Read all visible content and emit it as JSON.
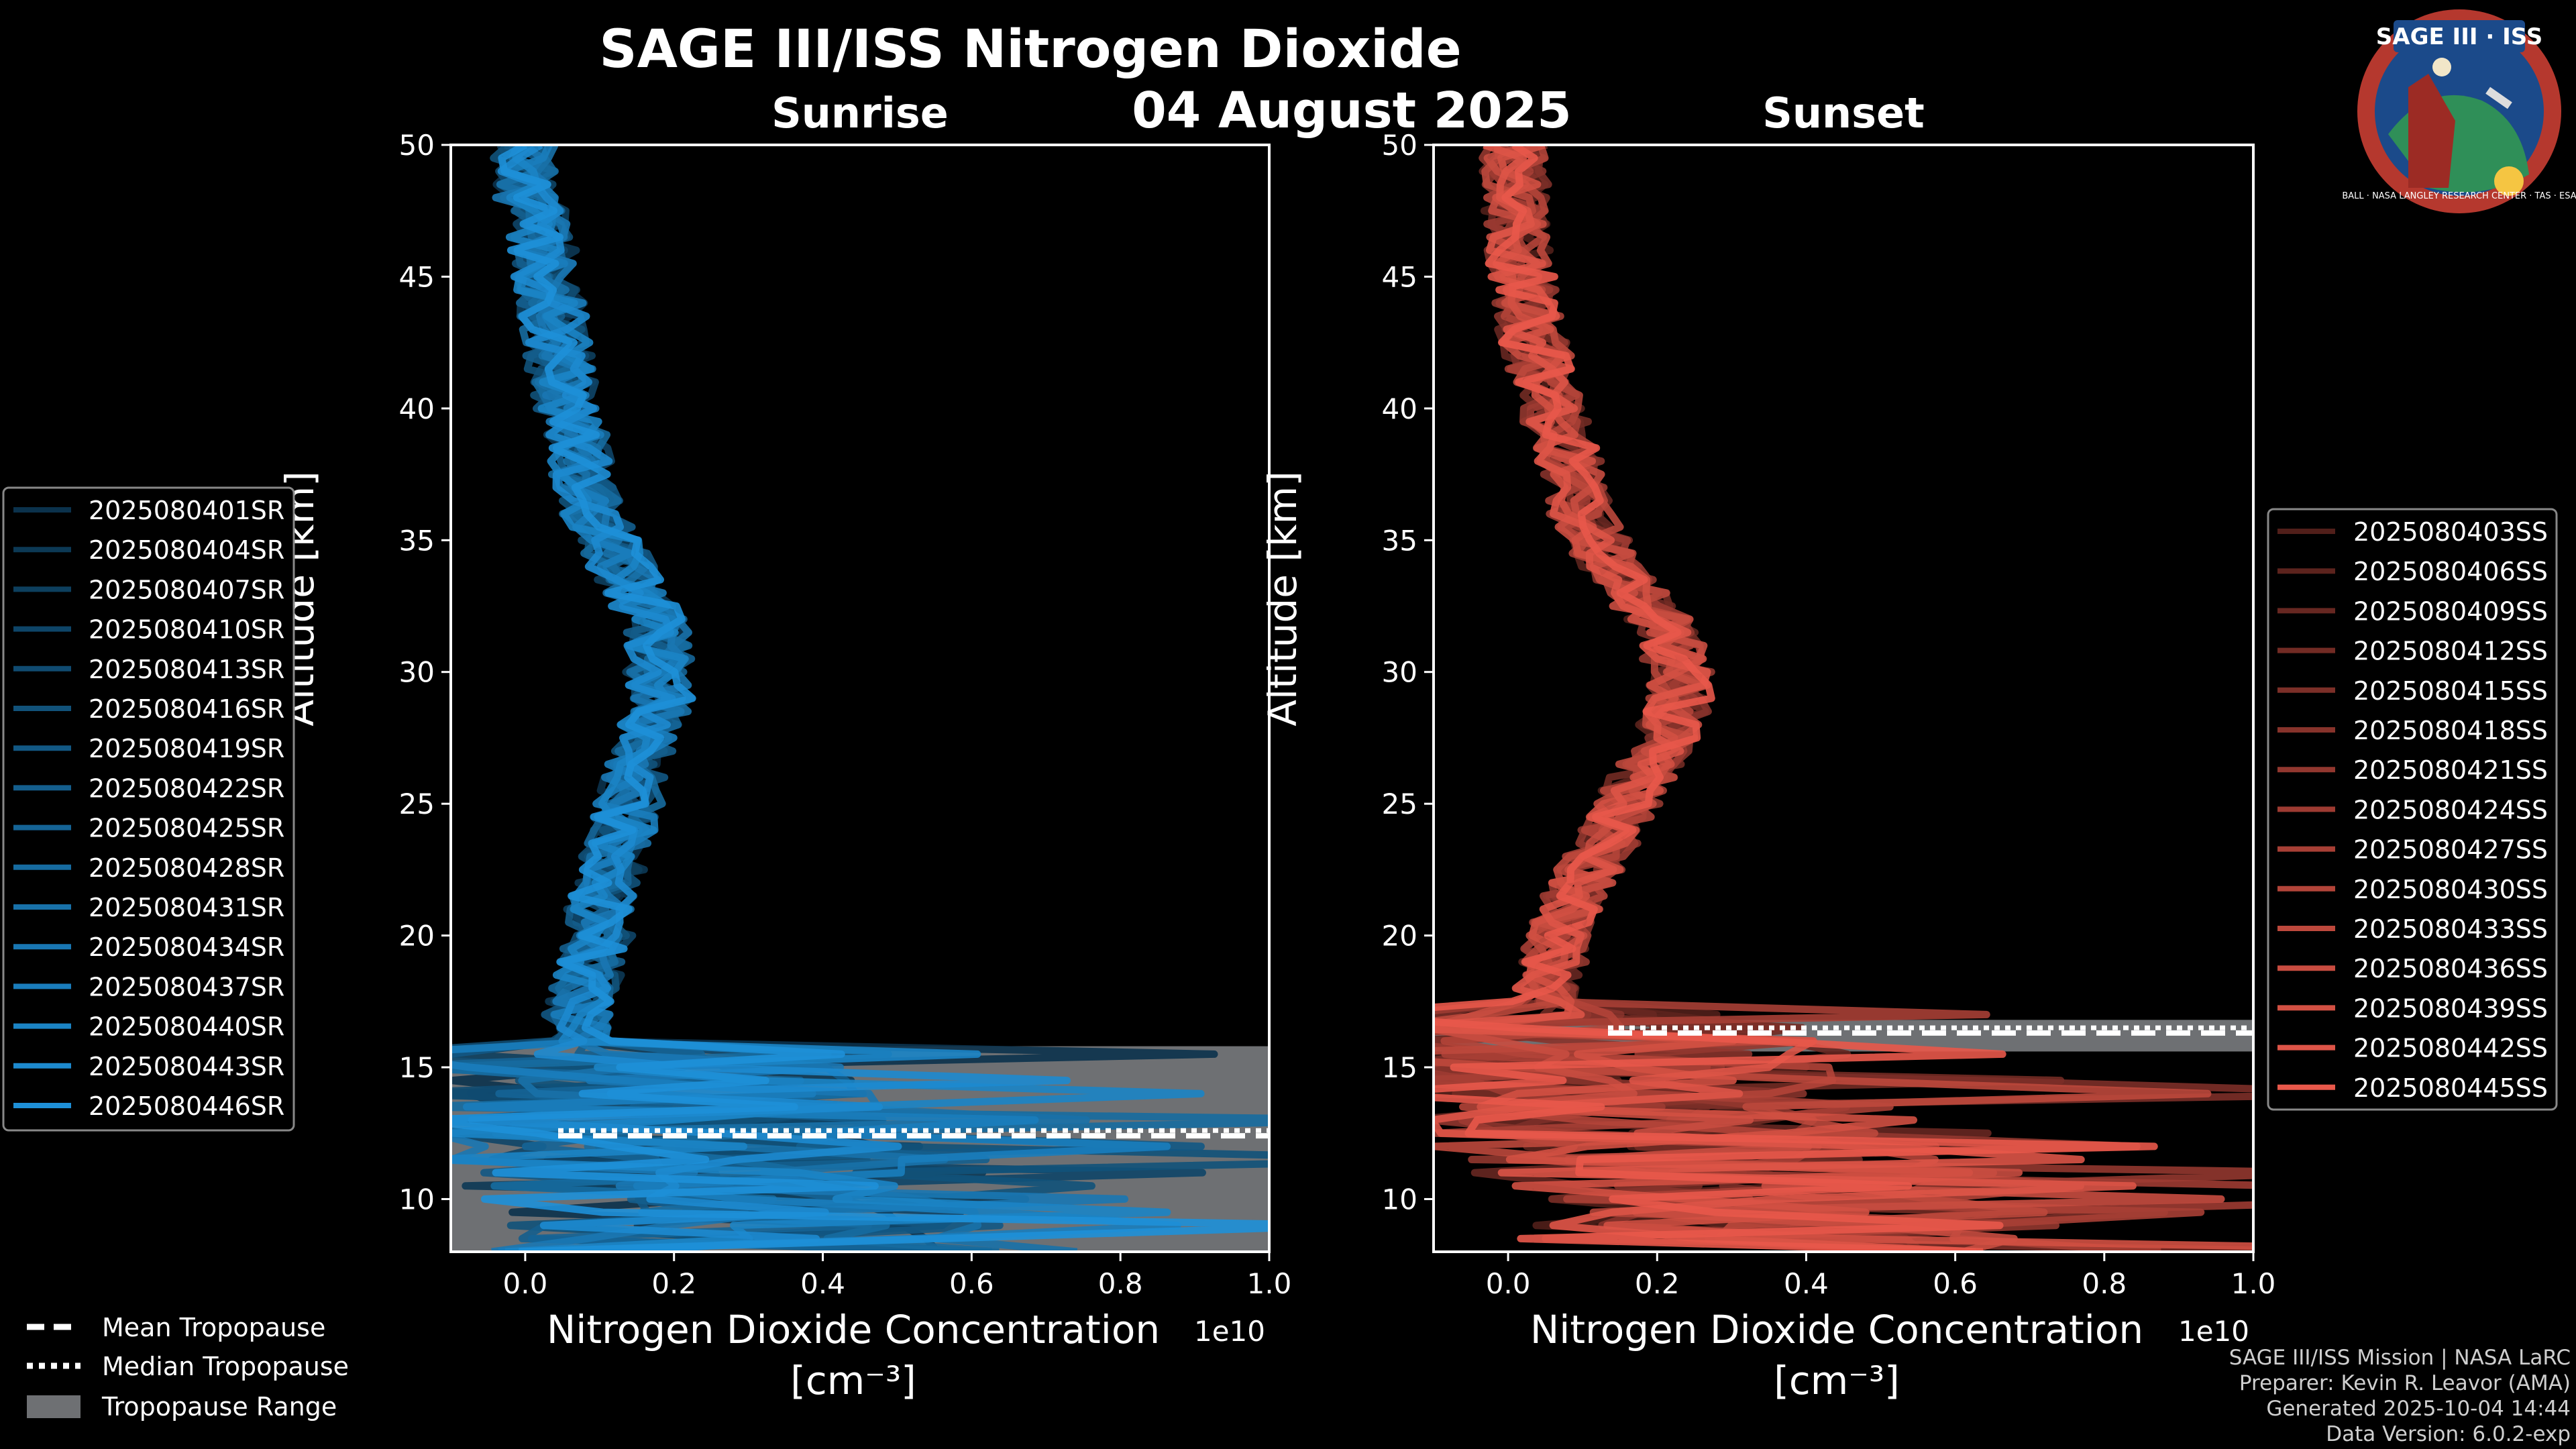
{
  "header": {
    "title": "SAGE III/ISS Nitrogen Dioxide",
    "date": "04 August 2025"
  },
  "logo": {
    "text": "SAGE III · ISS",
    "ring_text": "BALL · NASA LANGLEY RESEARCH CENTER · TAS · ESA"
  },
  "colors": {
    "sunrise": "#1e90d8",
    "sunset": "#e8584a",
    "tropopause_fill": "#6e7073",
    "background": "#000000"
  },
  "chart_data": [
    {
      "type": "line",
      "panel": "sunrise",
      "title": "Sunrise",
      "xlabel": "Nitrogen Dioxide Concentration",
      "xunits": "[cm⁻³]",
      "ylabel": "Altitude [km]",
      "x_multiplier": "1e10",
      "xlim": [
        -0.1,
        1.0
      ],
      "ylim": [
        8,
        50
      ],
      "xticks": [
        "0.0",
        "0.2",
        "0.4",
        "0.6",
        "0.8",
        "1.0"
      ],
      "xtick_values": [
        0.0,
        0.2,
        0.4,
        0.6,
        0.8,
        1.0
      ],
      "yticks": [
        10,
        15,
        20,
        25,
        30,
        35,
        40,
        45,
        50
      ],
      "mean_profile": {
        "altitude": [
          8,
          9,
          10,
          11,
          12,
          13,
          14,
          15,
          16,
          17,
          18,
          19,
          20,
          21,
          22,
          23,
          24,
          25,
          26,
          27,
          28,
          29,
          30,
          31,
          32,
          33,
          34,
          35,
          36,
          37,
          38,
          39,
          40,
          41,
          42,
          43,
          44,
          45,
          46,
          47,
          48,
          49,
          50
        ],
        "value": [
          0.3,
          0.3,
          0.28,
          0.25,
          0.2,
          0.16,
          0.12,
          0.09,
          0.07,
          0.07,
          0.08,
          0.09,
          0.1,
          0.1,
          0.11,
          0.12,
          0.13,
          0.14,
          0.15,
          0.16,
          0.17,
          0.18,
          0.18,
          0.18,
          0.17,
          0.15,
          0.13,
          0.11,
          0.095,
          0.085,
          0.075,
          0.065,
          0.055,
          0.05,
          0.045,
          0.04,
          0.035,
          0.03,
          0.025,
          0.02,
          0.0,
          0.0,
          0.0
        ]
      },
      "tropopause": {
        "range_km": [
          8.0,
          15.8
        ],
        "mean_km": 12.4,
        "median_km": 12.6
      },
      "legend": {
        "placement": "left",
        "entries": [
          "2025080401SR",
          "2025080404SR",
          "2025080407SR",
          "2025080410SR",
          "2025080413SR",
          "2025080416SR",
          "2025080419SR",
          "2025080422SR",
          "2025080425SR",
          "2025080428SR",
          "2025080431SR",
          "2025080434SR",
          "2025080437SR",
          "2025080440SR",
          "2025080443SR",
          "2025080446SR"
        ]
      }
    },
    {
      "type": "line",
      "panel": "sunset",
      "title": "Sunset",
      "xlabel": "Nitrogen Dioxide Concentration",
      "xunits": "[cm⁻³]",
      "ylabel": "Altitude [km]",
      "x_multiplier": "1e10",
      "xlim": [
        -0.1,
        1.0
      ],
      "ylim": [
        8,
        50
      ],
      "xticks": [
        "0.0",
        "0.2",
        "0.4",
        "0.6",
        "0.8",
        "1.0"
      ],
      "xtick_values": [
        0.0,
        0.2,
        0.4,
        0.6,
        0.8,
        1.0
      ],
      "yticks": [
        10,
        15,
        20,
        25,
        30,
        35,
        40,
        45,
        50
      ],
      "mean_profile": {
        "altitude": [
          8,
          9,
          10,
          11,
          12,
          13,
          14,
          15,
          16,
          17,
          18,
          19,
          20,
          21,
          22,
          23,
          24,
          25,
          26,
          27,
          28,
          29,
          30,
          31,
          32,
          33,
          34,
          35,
          36,
          37,
          38,
          39,
          40,
          41,
          42,
          43,
          44,
          45,
          46,
          47,
          48,
          49,
          50
        ],
        "value": [
          0.35,
          0.35,
          0.33,
          0.3,
          0.25,
          0.2,
          0.15,
          0.1,
          0.06,
          0.04,
          0.05,
          0.06,
          0.07,
          0.08,
          0.1,
          0.12,
          0.14,
          0.16,
          0.18,
          0.2,
          0.22,
          0.23,
          0.23,
          0.22,
          0.2,
          0.17,
          0.14,
          0.12,
          0.1,
          0.09,
          0.08,
          0.07,
          0.06,
          0.05,
          0.04,
          0.03,
          0.025,
          0.02,
          0.015,
          0.01,
          0.01,
          0.01,
          0.01
        ]
      },
      "tropopause": {
        "range_km": [
          15.6,
          16.8
        ],
        "mean_km": 16.3,
        "median_km": 16.5
      },
      "legend": {
        "placement": "right",
        "entries": [
          "2025080403SS",
          "2025080406SS",
          "2025080409SS",
          "2025080412SS",
          "2025080415SS",
          "2025080418SS",
          "2025080421SS",
          "2025080424SS",
          "2025080427SS",
          "2025080430SS",
          "2025080433SS",
          "2025080436SS",
          "2025080439SS",
          "2025080442SS",
          "2025080445SS"
        ]
      }
    }
  ],
  "key_legend": {
    "mean": "Mean Tropopause",
    "median": "Median Tropopause",
    "range": "Tropopause Range"
  },
  "footer": {
    "line1": "SAGE III/ISS Mission | NASA LaRC",
    "line2": "Preparer: Kevin R. Leavor (AMA)",
    "line3": "Generated 2025-10-04 14:44",
    "line4": "Data Version: 6.0.2-exp"
  }
}
